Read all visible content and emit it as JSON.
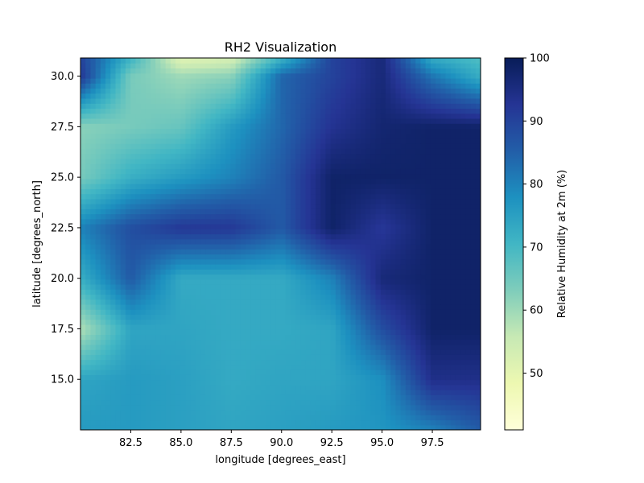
{
  "chart_data": {
    "type": "heatmap",
    "title": "RH2 Visualization",
    "xlabel": "longitude [degrees_east]",
    "ylabel": "latitude [degrees_north]",
    "xlim": [
      80.0,
      99.9
    ],
    "ylim": [
      12.5,
      30.9
    ],
    "xticks": [
      82.5,
      85.0,
      87.5,
      90.0,
      92.5,
      95.0,
      97.5
    ],
    "xtick_labels": [
      "82.5",
      "85.0",
      "87.5",
      "90.0",
      "92.5",
      "95.0",
      "97.5"
    ],
    "yticks": [
      15.0,
      17.5,
      20.0,
      22.5,
      25.0,
      27.5,
      30.0
    ],
    "ytick_labels": [
      "15.0",
      "17.5",
      "20.0",
      "22.5",
      "25.0",
      "27.5",
      "30.0"
    ],
    "colorbar": {
      "label": "Relative Humidity at 2m (%)",
      "range": [
        41,
        100
      ],
      "ticks": [
        50,
        60,
        70,
        80,
        90,
        100
      ],
      "tick_labels": [
        "50",
        "60",
        "70",
        "80",
        "90",
        "100"
      ],
      "colormap": "YlGnBu",
      "colors": [
        "#ffffd9",
        "#edf8b1",
        "#c7e9b4",
        "#7fcdbb",
        "#41b6c4",
        "#1d91c0",
        "#225ea8",
        "#253494",
        "#081d58"
      ]
    },
    "grid": false,
    "field_approx": {
      "lon": [
        80,
        82.5,
        85,
        87.5,
        90,
        92.5,
        95,
        97.5,
        100
      ],
      "lat": [
        12.5,
        15,
        17.5,
        20,
        22.5,
        25,
        27.5,
        30,
        31
      ],
      "values": [
        [
          76,
          76,
          75,
          74,
          75,
          76,
          77,
          80,
          86
        ],
        [
          74,
          76,
          75,
          73,
          74,
          74,
          78,
          94,
          94
        ],
        [
          58,
          74,
          74,
          73,
          73,
          74,
          88,
          98,
          98
        ],
        [
          72,
          86,
          73,
          73,
          73,
          80,
          96,
          98,
          98
        ],
        [
          80,
          88,
          92,
          92,
          86,
          98,
          92,
          98,
          98
        ],
        [
          64,
          72,
          76,
          80,
          86,
          98,
          98,
          98,
          98
        ],
        [
          62,
          64,
          66,
          76,
          84,
          93,
          97,
          98,
          98
        ],
        [
          92,
          64,
          60,
          62,
          84,
          90,
          96,
          82,
          72
        ],
        [
          90,
          72,
          50,
          52,
          70,
          90,
          96,
          72,
          68
        ]
      ]
    }
  }
}
